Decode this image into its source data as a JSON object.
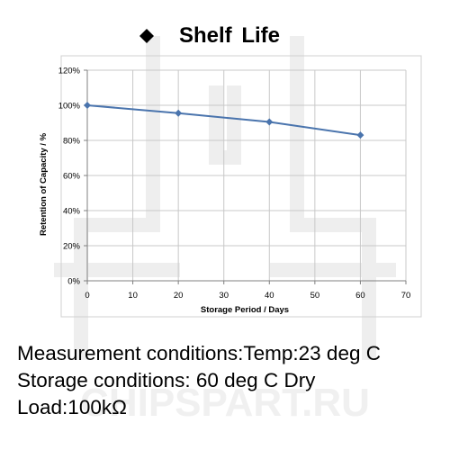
{
  "title": "Shelf  Life",
  "chart_data": {
    "type": "line",
    "xlabel": "Storage Period / Days",
    "ylabel": "Retention of Capacity / %",
    "xlim": [
      0,
      70
    ],
    "ylim": [
      0,
      120
    ],
    "x_ticks": [
      "0",
      "10",
      "20",
      "30",
      "40",
      "50",
      "60",
      "70"
    ],
    "y_ticks": [
      "0%",
      "20%",
      "40%",
      "60%",
      "80%",
      "100%",
      "120%"
    ],
    "grid": true,
    "series": [
      {
        "x": [
          0,
          20,
          40,
          60
        ],
        "y": [
          100,
          95.5,
          90.5,
          83
        ],
        "color": "#4a74ad",
        "marker": "diamond"
      }
    ]
  },
  "notes": [
    "Measurement conditions:Temp:23 deg C",
    "Storage conditions: 60 deg C Dry",
    "Load:100kΩ"
  ],
  "watermark": "CHIPSPART.RU"
}
